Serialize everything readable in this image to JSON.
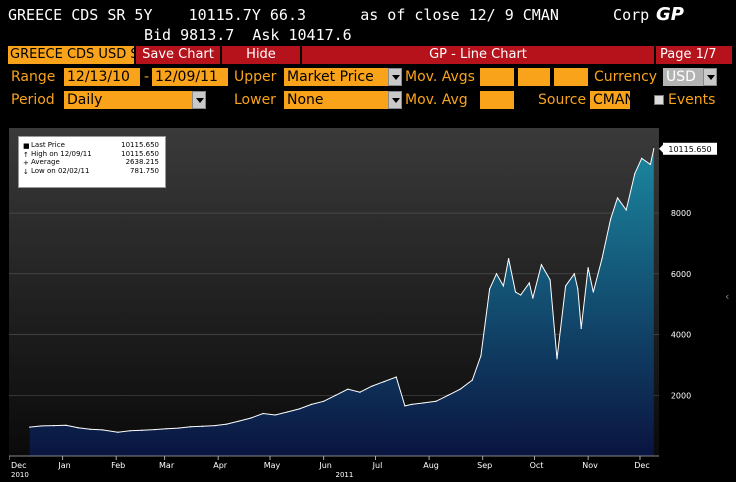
{
  "header": {
    "line1": "GREECE CDS SR 5Y    10115.7Y 66.3      as of close 12/ 9 CMAN      Corp",
    "line2": "Bid 9813.7  Ask 10417.6",
    "brand": "GP"
  },
  "toolbar": {
    "security": "GREECE CDS USD S",
    "save_label": "Save Chart",
    "hide_label": "Hide",
    "title": "GP - Line Chart",
    "page": "Page 1/7"
  },
  "form": {
    "range_label": "Range",
    "range_start": "12/13/10",
    "range_sep": "-",
    "range_end": "12/09/11",
    "upper_label": "Upper",
    "upper_value": "Market Price",
    "mov_avgs_label": "Mov. Avgs",
    "currency_label": "Currency",
    "currency_value": "USD",
    "period_label": "Period",
    "period_value": "Daily",
    "lower_label": "Lower",
    "lower_value": "None",
    "mov_avg_label": "Mov. Avg",
    "source_label": "Source",
    "source_value": "CMAN",
    "events_label": "Events"
  },
  "legend": {
    "items": [
      {
        "marker": "■",
        "label": "Last Price",
        "value": "10115.650"
      },
      {
        "marker": "↑",
        "label": "High on 12/09/11",
        "value": "10115.650"
      },
      {
        "marker": "+",
        "label": "Average",
        "value": "2638.215"
      },
      {
        "marker": "↓",
        "label": "Low on 02/02/11",
        "value": "781.750"
      }
    ]
  },
  "chart_data": {
    "type": "area",
    "last_label": "10115.650",
    "y_ticks": [
      2000,
      4000,
      6000,
      8000
    ],
    "y_tick_labels": [
      "2000",
      "4000",
      "6000",
      "8000"
    ],
    "ylim": [
      0,
      10800
    ],
    "x_tick_labels": [
      "Dec",
      "Jan",
      "Feb",
      "Mar",
      "Apr",
      "May",
      "Jun",
      "Jul",
      "Aug",
      "Sep",
      "Oct",
      "Nov",
      "Dec"
    ],
    "x_year_labels": [
      "2010",
      "2011"
    ],
    "x_ticks": [
      "2010-12-01",
      "2011-01-01",
      "2011-02-01",
      "2011-03-01",
      "2011-04-01",
      "2011-05-01",
      "2011-06-01",
      "2011-07-01",
      "2011-08-01",
      "2011-09-01",
      "2011-10-01",
      "2011-11-01",
      "2011-12-01"
    ],
    "xlim": [
      "2010-12-01",
      "2011-12-12"
    ],
    "colors": {
      "fill_top": "#1b87a0",
      "fill_bottom": "#0a1440",
      "line": "#ffffff",
      "bg_top": "#3a3a3a",
      "bg_bottom": "#0a0a0a"
    },
    "series": [
      {
        "x": [
          "2010-12-13",
          "2010-12-20",
          "2010-12-27",
          "2011-01-03",
          "2011-01-10",
          "2011-01-17",
          "2011-01-24",
          "2011-02-02",
          "2011-02-09",
          "2011-02-16",
          "2011-02-23",
          "2011-03-02",
          "2011-03-09",
          "2011-03-16",
          "2011-03-23",
          "2011-03-30",
          "2011-04-06",
          "2011-04-13",
          "2011-04-20",
          "2011-04-27",
          "2011-05-04",
          "2011-05-11",
          "2011-05-18",
          "2011-05-25",
          "2011-06-01",
          "2011-06-08",
          "2011-06-15",
          "2011-06-22",
          "2011-06-29",
          "2011-07-06",
          "2011-07-13",
          "2011-07-18",
          "2011-07-22",
          "2011-07-29",
          "2011-08-05",
          "2011-08-12",
          "2011-08-19",
          "2011-08-26",
          "2011-08-31",
          "2011-09-05",
          "2011-09-09",
          "2011-09-13",
          "2011-09-16",
          "2011-09-20",
          "2011-09-23",
          "2011-09-28",
          "2011-09-30",
          "2011-10-05",
          "2011-10-10",
          "2011-10-14",
          "2011-10-19",
          "2011-10-24",
          "2011-10-26",
          "2011-10-28",
          "2011-11-01",
          "2011-11-04",
          "2011-11-09",
          "2011-11-14",
          "2011-11-18",
          "2011-11-23",
          "2011-11-28",
          "2011-12-02",
          "2011-12-07",
          "2011-12-09"
        ],
        "values": [
          950,
          990,
          1000,
          1010,
          930,
          880,
          860,
          782,
          830,
          850,
          870,
          900,
          920,
          960,
          980,
          1000,
          1050,
          1150,
          1250,
          1400,
          1350,
          1450,
          1550,
          1700,
          1800,
          2000,
          2200,
          2100,
          2300,
          2450,
          2600,
          1650,
          1700,
          1750,
          1800,
          2000,
          2200,
          2500,
          3300,
          5500,
          6000,
          5600,
          6500,
          5400,
          5300,
          5700,
          5200,
          6300,
          5800,
          3200,
          5600,
          6000,
          5500,
          4200,
          6200,
          5400,
          6500,
          7800,
          8500,
          8100,
          9300,
          9800,
          9600,
          10116
        ]
      }
    ]
  }
}
